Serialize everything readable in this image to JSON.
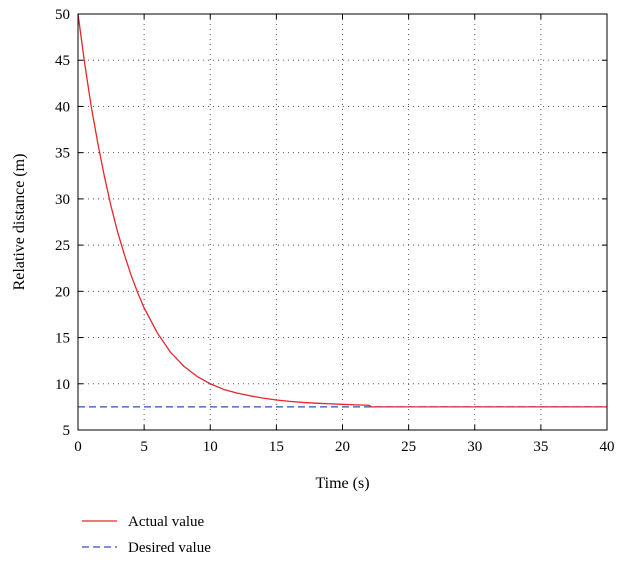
{
  "chart_data": {
    "type": "line",
    "xlabel": "Time (s)",
    "ylabel": "Relative distance (m)",
    "xlim": [
      0,
      40
    ],
    "ylim": [
      5,
      50
    ],
    "xticks": [
      0,
      5,
      10,
      15,
      20,
      25,
      30,
      35,
      40
    ],
    "yticks": [
      5,
      10,
      15,
      20,
      25,
      30,
      35,
      40,
      45,
      50
    ],
    "xtick_labels": [
      "0",
      "5",
      "10",
      "15",
      "20",
      "25",
      "30",
      "35",
      "40"
    ],
    "ytick_labels": [
      "5",
      "10",
      "15",
      "20",
      "25",
      "30",
      "35",
      "40",
      "45",
      "50"
    ],
    "grid": true,
    "legend_position": "bottom-left, below plot",
    "series": [
      {
        "name": "Actual value",
        "style": "solid",
        "color": "#e8262b",
        "x": [
          0,
          0.5,
          1,
          1.5,
          2,
          2.5,
          3,
          3.5,
          4,
          4.5,
          5,
          6,
          7,
          8,
          9,
          10,
          11,
          12,
          13,
          14,
          15,
          16,
          17,
          18,
          19,
          20,
          21,
          22,
          22.2,
          25,
          30,
          35,
          40
        ],
        "y": [
          50,
          44.7,
          40,
          36,
          32.4,
          29.2,
          26.4,
          24,
          21.8,
          19.9,
          18.2,
          15.5,
          13.4,
          11.9,
          10.8,
          10,
          9.4,
          9,
          8.7,
          8.45,
          8.25,
          8.1,
          7.98,
          7.9,
          7.84,
          7.78,
          7.72,
          7.68,
          7.5,
          7.5,
          7.5,
          7.5,
          7.5
        ]
      },
      {
        "name": "Desired value",
        "style": "dashed",
        "color": "#2a52be",
        "x": [
          0,
          40
        ],
        "y": [
          7.5,
          7.5
        ]
      }
    ]
  }
}
